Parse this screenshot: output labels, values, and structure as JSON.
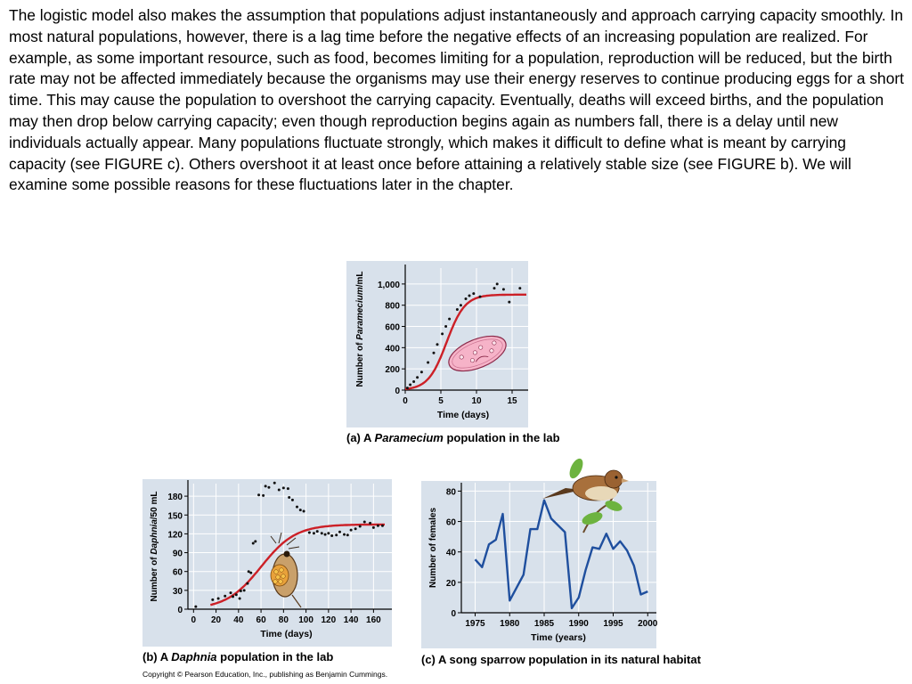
{
  "paragraph": "The logistic model also makes the assumption that populations adjust instantaneously and approach carrying capacity smoothly. In most natural populations, however, there is a lag time before the negative effects of an increasing population are realized. For example, as some important resource, such as food, becomes limiting for a population, reproduction will be reduced, but the birth rate may not be affected immediately because the organisms may use their energy reserves to continue producing eggs for a short time. This may cause the population to overshoot the carrying capacity. Eventually, deaths will exceed births, and the population may then drop below carrying capacity; even though reproduction begins again as numbers fall, there is a delay until new individuals actually appear. Many populations fluctuate strongly, which makes it difficult to define what is meant by carrying capacity (see FIGURE c). Others overshoot it at least once before attaining a relatively stable size (see FIGURE b). We will examine some possible reasons for these fluctuations later in the chapter.",
  "captions": {
    "a": {
      "prefix": "(a) A ",
      "italic": "Paramecium",
      "suffix": " population in the lab"
    },
    "b": {
      "prefix": "(b) A ",
      "italic": "Daphnia",
      "suffix": " population in the lab"
    },
    "c": {
      "text": "(c) A song sparrow population in its natural habitat"
    }
  },
  "copyright": "Copyright © Pearson Education, Inc., publishing as Benjamin Cummings.",
  "colors": {
    "plot_bg": "#d8e1eb",
    "model_curve": "#cc2027",
    "data_line": "#1f4f9e",
    "points": "#111111"
  },
  "chart_data": [
    {
      "type": "scatter",
      "xlabel": "Time (days)",
      "ylabel_prefix": "Number of ",
      "ylabel_italic": "Paramecium",
      "ylabel_suffix": "/mL",
      "xlim": [
        0,
        17
      ],
      "ylim": [
        0,
        1150
      ],
      "xticks": [
        0,
        5,
        10,
        15
      ],
      "yticks": [
        0,
        200,
        400,
        600,
        800,
        1000
      ],
      "ytick_labels": [
        "0",
        "200",
        "400",
        "600",
        "800",
        "1,000"
      ],
      "grid": true,
      "icon": "paramecium-illustration",
      "points": [
        [
          0.3,
          20
        ],
        [
          0.7,
          50
        ],
        [
          1.2,
          80
        ],
        [
          1.7,
          120
        ],
        [
          2.3,
          170
        ],
        [
          3.2,
          260
        ],
        [
          4.0,
          350
        ],
        [
          4.5,
          430
        ],
        [
          5.2,
          530
        ],
        [
          5.7,
          600
        ],
        [
          6.2,
          670
        ],
        [
          7.3,
          760
        ],
        [
          7.8,
          800
        ],
        [
          8.5,
          860
        ],
        [
          9.0,
          890
        ],
        [
          9.6,
          910
        ],
        [
          10.5,
          880
        ],
        [
          12.5,
          960
        ],
        [
          12.9,
          1000
        ],
        [
          13.8,
          950
        ],
        [
          14.6,
          830
        ],
        [
          16.1,
          960
        ]
      ],
      "model": {
        "K": 900,
        "r": 0.78,
        "t_mid": 5.8,
        "start": 0
      }
    },
    {
      "type": "scatter",
      "xlabel": "Time (days)",
      "ylabel_prefix": "Number of ",
      "ylabel_italic": "Daphnia",
      "ylabel_suffix": "/50 mL",
      "xlim": [
        -5,
        170
      ],
      "ylim": [
        0,
        200
      ],
      "xticks": [
        0,
        20,
        40,
        60,
        80,
        100,
        120,
        140,
        160
      ],
      "yticks": [
        0,
        30,
        60,
        90,
        120,
        150,
        180
      ],
      "grid": true,
      "icon": "daphnia-illustration",
      "points": [
        [
          2,
          4
        ],
        [
          17,
          15
        ],
        [
          22,
          17
        ],
        [
          28,
          21
        ],
        [
          33,
          26
        ],
        [
          35,
          20
        ],
        [
          38,
          23
        ],
        [
          41,
          17
        ],
        [
          42,
          29
        ],
        [
          45,
          30
        ],
        [
          48,
          41
        ],
        [
          49,
          60
        ],
        [
          51,
          58
        ],
        [
          53,
          105
        ],
        [
          55,
          108
        ],
        [
          58,
          182
        ],
        [
          62,
          181
        ],
        [
          64,
          196
        ],
        [
          67,
          194
        ],
        [
          72,
          201
        ],
        [
          76,
          190
        ],
        [
          80,
          193
        ],
        [
          84,
          192
        ],
        [
          85,
          178
        ],
        [
          88,
          174
        ],
        [
          92,
          163
        ],
        [
          95,
          158
        ],
        [
          98,
          156
        ],
        [
          103,
          122
        ],
        [
          107,
          121
        ],
        [
          110,
          124
        ],
        [
          114,
          121
        ],
        [
          117,
          119
        ],
        [
          120,
          121
        ],
        [
          123,
          117
        ],
        [
          127,
          118
        ],
        [
          130,
          123
        ],
        [
          134,
          119
        ],
        [
          137,
          118
        ],
        [
          140,
          126
        ],
        [
          144,
          128
        ],
        [
          148,
          132
        ],
        [
          152,
          139
        ],
        [
          157,
          137
        ],
        [
          160,
          130
        ],
        [
          164,
          133
        ],
        [
          168,
          133
        ]
      ],
      "model": {
        "K": 135,
        "r": 0.065,
        "t_mid": 60,
        "start": 15
      }
    },
    {
      "type": "line",
      "xlabel": "Time (years)",
      "ylabel": "Number of females",
      "xlim": [
        1973,
        2001
      ],
      "ylim": [
        0,
        82
      ],
      "xticks": [
        1975,
        1980,
        1985,
        1990,
        1995,
        2000
      ],
      "yticks": [
        0,
        20,
        40,
        60,
        80
      ],
      "grid": true,
      "icon": "song-sparrow-illustration",
      "x": [
        1975,
        1976,
        1977,
        1978,
        1979,
        1980,
        1982,
        1983,
        1984,
        1985,
        1986,
        1988,
        1989,
        1990,
        1991,
        1992,
        1993,
        1994,
        1995,
        1996,
        1997,
        1998,
        1999,
        2000
      ],
      "y": [
        35,
        30,
        45,
        48,
        65,
        8,
        25,
        55,
        55,
        74,
        62,
        53,
        3,
        10,
        28,
        43,
        42,
        52,
        42,
        47,
        41,
        31,
        12,
        14
      ]
    }
  ]
}
